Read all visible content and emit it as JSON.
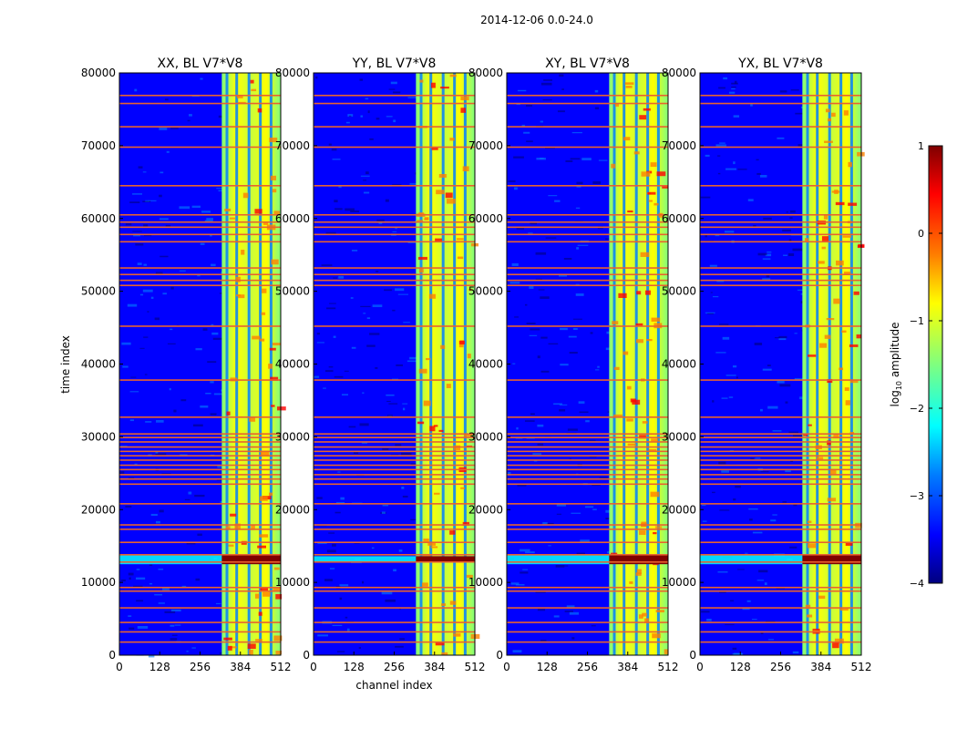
{
  "figure_title": "2014-12-06 0.0-24.0",
  "colors": {
    "jet": [
      "#00007f",
      "#0000ff",
      "#007fff",
      "#00ffff",
      "#7fff7f",
      "#ffff00",
      "#ff7f00",
      "#ff0000",
      "#7f0000"
    ],
    "flag_line": "#e8622f",
    "background": "#ffffff"
  },
  "chart_data": [
    {
      "type": "heatmap",
      "title": "XX, BL V7*V8",
      "xlabel": "",
      "ylabel": "time index",
      "xlim": [
        0,
        512
      ],
      "ylim": [
        0,
        80000
      ],
      "xticks": [
        "0",
        "128",
        "256",
        "384",
        "512"
      ],
      "yticks": [
        "0",
        "10000",
        "20000",
        "30000",
        "40000",
        "50000",
        "60000",
        "70000",
        "80000"
      ],
      "bright_channel_range": [
        325,
        512
      ],
      "rfi_time_band": [
        12500,
        13800
      ],
      "flagged_time_rows": [
        1800,
        3200,
        4500,
        6500,
        8800,
        9300,
        12800,
        13800,
        15500,
        17300,
        17900,
        20800,
        23500,
        24200,
        24800,
        25500,
        26100,
        26800,
        27400,
        28000,
        28600,
        29300,
        29900,
        30400,
        32700,
        37800,
        45200,
        50800,
        51500,
        52300,
        53200,
        56800,
        57800,
        58800,
        59500,
        60500,
        64500,
        69800,
        72600,
        75800,
        76900
      ]
    },
    {
      "type": "heatmap",
      "title": "YY, BL V7*V8",
      "xlabel": "channel index",
      "ylabel": "",
      "xlim": [
        0,
        512
      ],
      "ylim": [
        0,
        80000
      ],
      "xticks": [
        "0",
        "128",
        "256",
        "384",
        "512"
      ],
      "yticks": [
        "0",
        "10000",
        "20000",
        "30000",
        "40000",
        "50000",
        "60000",
        "70000",
        "80000"
      ],
      "bright_channel_range": [
        325,
        512
      ],
      "rfi_time_band": [
        12800,
        13600
      ],
      "flagged_time_rows": [
        1800,
        3200,
        4500,
        6500,
        8800,
        9300,
        12800,
        13800,
        15500,
        17300,
        17900,
        20800,
        23500,
        24200,
        24800,
        25500,
        26100,
        26800,
        27400,
        28000,
        28600,
        29300,
        29900,
        30400,
        32700,
        37800,
        45200,
        50800,
        51500,
        52300,
        53200,
        56800,
        57800,
        58800,
        59500,
        60500,
        64500,
        69800,
        72600,
        75800,
        76900
      ]
    },
    {
      "type": "heatmap",
      "title": "XY, BL V7*V8",
      "xlabel": "",
      "ylabel": "",
      "xlim": [
        0,
        512
      ],
      "ylim": [
        0,
        80000
      ],
      "xticks": [
        "0",
        "128",
        "256",
        "384",
        "512"
      ],
      "yticks": [
        "0",
        "10000",
        "20000",
        "30000",
        "40000",
        "50000",
        "60000",
        "70000",
        "80000"
      ],
      "bright_channel_range": [
        325,
        512
      ],
      "rfi_time_band": [
        12500,
        13800
      ],
      "flagged_time_rows": [
        1800,
        3200,
        4500,
        6500,
        8800,
        9300,
        12800,
        13800,
        15500,
        17300,
        17900,
        20800,
        23500,
        24200,
        24800,
        25500,
        26100,
        26800,
        27400,
        28000,
        28600,
        29300,
        29900,
        30400,
        32700,
        37800,
        45200,
        50800,
        51500,
        52300,
        53200,
        56800,
        57800,
        58800,
        59500,
        60500,
        64500,
        69800,
        72600,
        75800,
        76900
      ]
    },
    {
      "type": "heatmap",
      "title": "YX, BL V7*V8",
      "xlabel": "",
      "ylabel": "",
      "xlim": [
        0,
        512
      ],
      "ylim": [
        0,
        80000
      ],
      "xticks": [
        "0",
        "128",
        "256",
        "384",
        "512"
      ],
      "yticks": [
        "0",
        "10000",
        "20000",
        "30000",
        "40000",
        "50000",
        "60000",
        "70000",
        "80000"
      ],
      "bright_channel_range": [
        325,
        512
      ],
      "rfi_time_band": [
        12500,
        13800
      ],
      "flagged_time_rows": [
        1800,
        3200,
        4500,
        6500,
        8800,
        9300,
        12800,
        13800,
        15500,
        17300,
        17900,
        20800,
        23500,
        24200,
        24800,
        25500,
        26100,
        26800,
        27400,
        28000,
        28600,
        29300,
        29900,
        30400,
        32700,
        37800,
        45200,
        50800,
        51500,
        52300,
        53200,
        56800,
        57800,
        58800,
        59500,
        60500,
        64500,
        69800,
        72600,
        75800,
        76900
      ]
    }
  ],
  "colorbar": {
    "label_prefix": "log",
    "label_subscript": "10",
    "label_suffix": " amplitude",
    "range": [
      -4,
      1
    ],
    "ticks": [
      {
        "value": 1,
        "label": "1"
      },
      {
        "value": 0,
        "label": "0"
      },
      {
        "value": -1,
        "label": "−1"
      },
      {
        "value": -2,
        "label": "−2"
      },
      {
        "value": -3,
        "label": "−3"
      },
      {
        "value": -4,
        "label": "−4"
      }
    ]
  }
}
